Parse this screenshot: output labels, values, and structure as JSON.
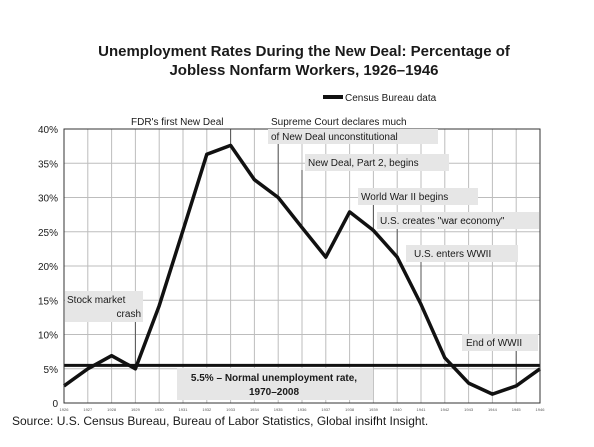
{
  "chart_data": {
    "type": "line",
    "title_line1": "Unemployment Rates During the New Deal: Percentage of",
    "title_line2": "Jobless Nonfarm Workers, 1926–1946",
    "legend": "Census Bureau data",
    "series": [
      {
        "name": "Census Bureau data",
        "x": [
          1926,
          1927,
          1928,
          1929,
          1930,
          1931,
          1932,
          1933,
          1934,
          1935,
          1936,
          1937,
          1938,
          1939,
          1940,
          1941,
          1942,
          1943,
          1944,
          1945,
          1946
        ],
        "values": [
          2.5,
          5.0,
          6.9,
          5.0,
          14.2,
          25.2,
          36.3,
          37.6,
          32.6,
          30.0,
          25.6,
          21.3,
          27.9,
          25.2,
          21.3,
          14.4,
          6.6,
          2.9,
          1.3,
          2.5,
          5.0
        ]
      }
    ],
    "reference_line": {
      "value": 5.5,
      "label_line1": "5.5% – Normal unemployment rate,",
      "label_line2": "1970–2008"
    },
    "ylim": [
      0,
      40
    ],
    "xlim": [
      1926,
      1946
    ],
    "yticks": [
      "0",
      "5%",
      "10%",
      "15%",
      "20%",
      "25%",
      "30%",
      "35%",
      "40%"
    ],
    "ytick_values": [
      0,
      5,
      10,
      15,
      20,
      25,
      30,
      35,
      40
    ],
    "xticks": [
      "1926",
      "1927",
      "1928",
      "1929",
      "1930",
      "1931",
      "1932",
      "1933",
      "1934",
      "1935",
      "1936",
      "1937",
      "1938",
      "1939",
      "1940",
      "1941",
      "1942",
      "1943",
      "1944",
      "1945",
      "1946"
    ],
    "grid": true,
    "annotations": [
      {
        "lines": [
          "Stock market",
          "crash"
        ],
        "x": 1929,
        "shaded": true
      },
      {
        "lines": [
          "FDR's first New Deal"
        ],
        "x": 1933,
        "shaded": false
      },
      {
        "lines": [
          "Supreme Court declares much",
          "of New Deal unconstitutional"
        ],
        "x": 1935,
        "shaded": true
      },
      {
        "lines": [
          "New Deal, Part 2, begins"
        ],
        "x": 1936,
        "shaded": true
      },
      {
        "lines": [
          "World War II begins"
        ],
        "x": 1939,
        "shaded": true
      },
      {
        "lines": [
          "U.S. creates \"war economy\""
        ],
        "x": 1940,
        "shaded": true
      },
      {
        "lines": [
          "U.S. enters WWII"
        ],
        "x": 1941,
        "shaded": true
      },
      {
        "lines": [
          "End of WWII"
        ],
        "x": 1945,
        "shaded": true
      }
    ]
  },
  "source": "Source: U.S. Census Bureau, Bureau of Labor Statistics, Global insifht Insight."
}
